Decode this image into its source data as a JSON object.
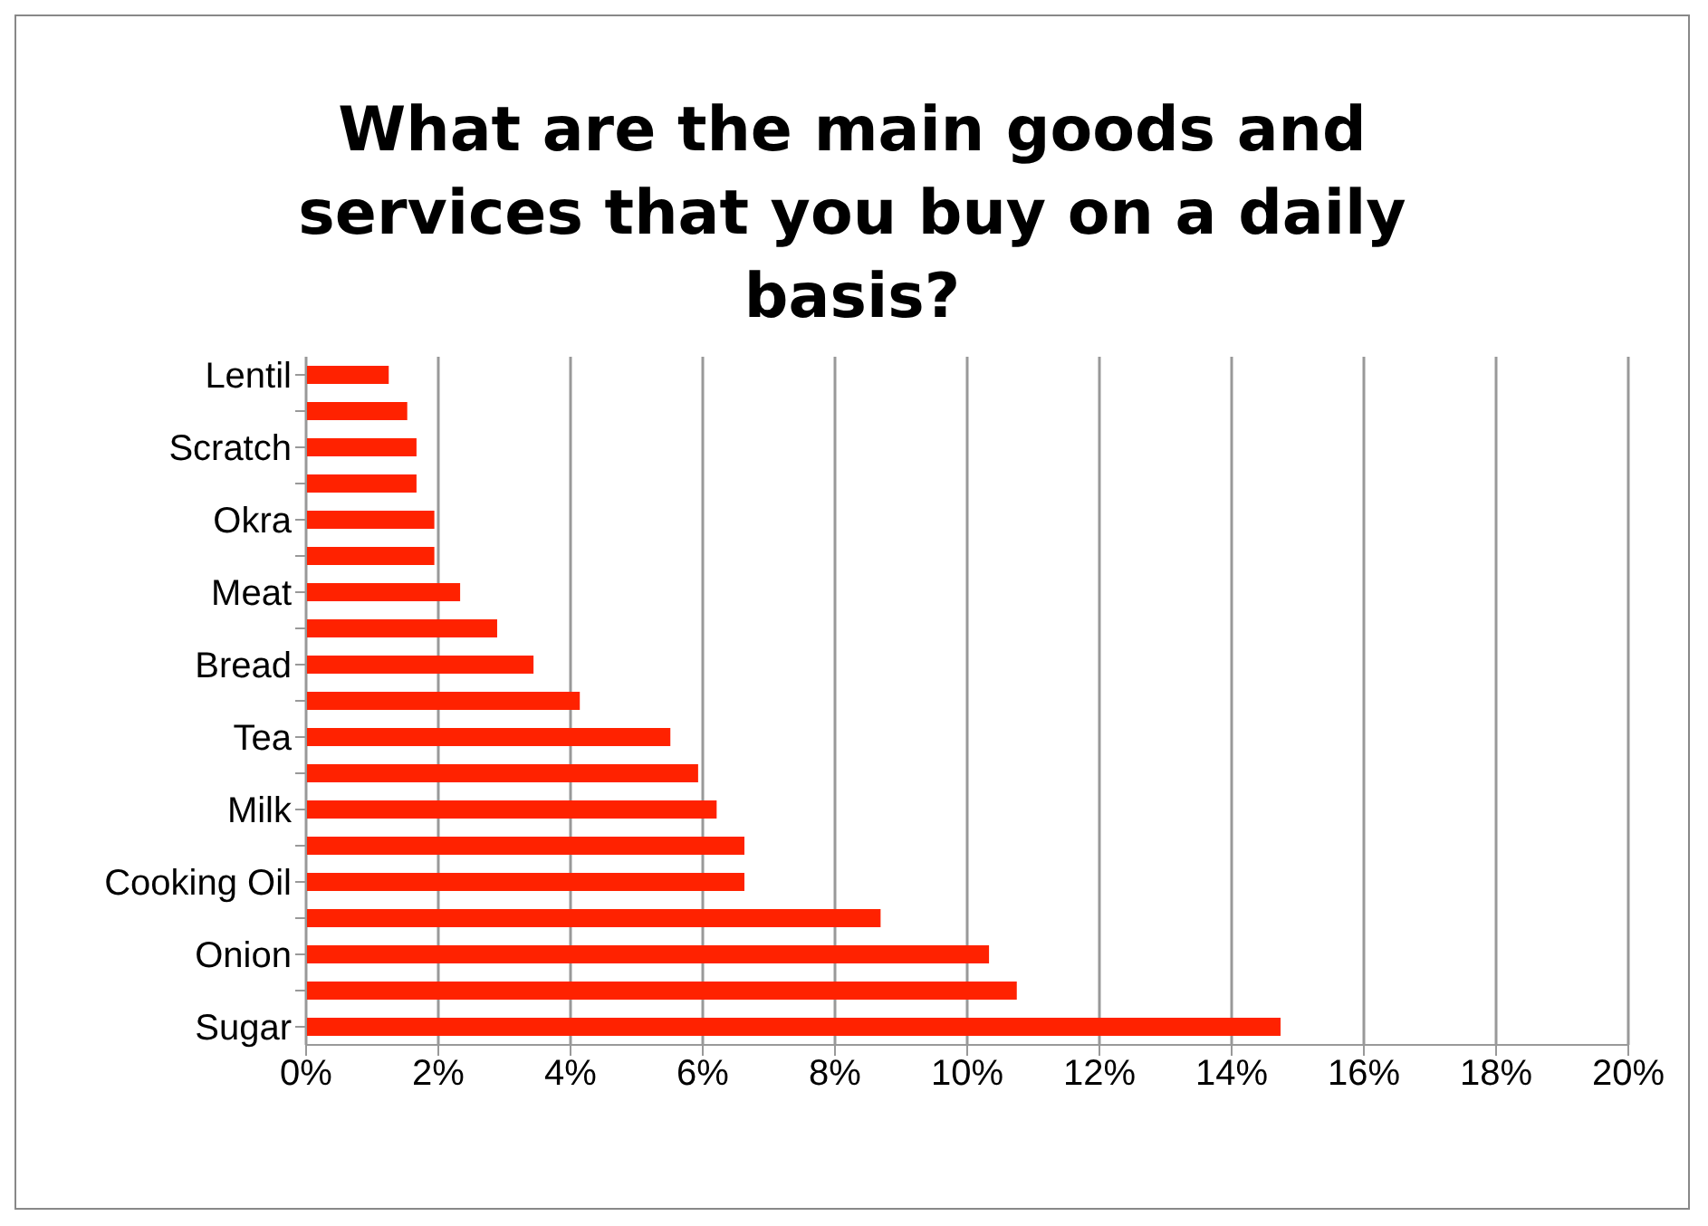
{
  "chart_data": {
    "type": "bar",
    "orientation": "horizontal",
    "title": "What are the main goods and services that you buy on a daily basis?",
    "categories": [
      "Lentil",
      null,
      "Scratch",
      null,
      "Okra",
      null,
      "Meat",
      null,
      "Bread",
      null,
      "Tea",
      null,
      "Milk",
      null,
      "Cooking Oil",
      null,
      "Onion",
      null,
      "Sugar"
    ],
    "values": [
      1.25,
      1.53,
      1.67,
      1.67,
      1.94,
      1.94,
      2.33,
      2.89,
      3.44,
      4.14,
      5.51,
      5.93,
      6.21,
      6.63,
      6.63,
      8.69,
      10.33,
      10.75,
      14.74
    ],
    "color": "#ff2200",
    "xlim": [
      0,
      20
    ],
    "xticks": [
      {
        "value": 0,
        "label": "0%"
      },
      {
        "value": 2,
        "label": "2%"
      },
      {
        "value": 4,
        "label": "4%"
      },
      {
        "value": 6,
        "label": "6%"
      },
      {
        "value": 8,
        "label": "8%"
      },
      {
        "value": 10,
        "label": "10%"
      },
      {
        "value": 12,
        "label": "12%"
      },
      {
        "value": 14,
        "label": "14%"
      },
      {
        "value": 16,
        "label": "16%"
      },
      {
        "value": 18,
        "label": "18%"
      },
      {
        "value": 20,
        "label": "20%"
      }
    ],
    "grid": "x",
    "legend": false
  }
}
